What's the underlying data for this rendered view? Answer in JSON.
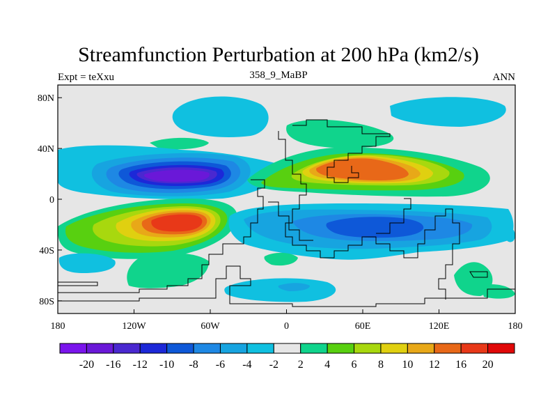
{
  "title": "Streamfunction Perturbation at 200 hPa (km2/s)",
  "left_label": "Expt = teXxu",
  "center_label": "358_9_MaBP",
  "right_label": "ANN",
  "map": {
    "lon_range": [
      -180,
      180
    ],
    "lat_range": [
      -90,
      90
    ],
    "x_ticks": [
      {
        "value": -180,
        "label": "180"
      },
      {
        "value": -120,
        "label": "120W"
      },
      {
        "value": -60,
        "label": "60W"
      },
      {
        "value": 0,
        "label": "0"
      },
      {
        "value": 60,
        "label": "60E"
      },
      {
        "value": 120,
        "label": "120E"
      },
      {
        "value": 180,
        "label": "180"
      }
    ],
    "y_ticks": [
      {
        "value": 80,
        "label": "80N"
      },
      {
        "value": 40,
        "label": "40N"
      },
      {
        "value": 0,
        "label": "0"
      },
      {
        "value": -40,
        "label": "40S"
      },
      {
        "value": -80,
        "label": "80S"
      }
    ],
    "background_color": "#e6e6e6"
  },
  "colorbar": {
    "levels": [
      "-20",
      "-16",
      "-12",
      "-10",
      "-8",
      "-6",
      "-4",
      "-2",
      "2",
      "4",
      "6",
      "8",
      "10",
      "12",
      "16",
      "20"
    ],
    "colors": [
      "#7a14ec",
      "#6a18d8",
      "#4a28d0",
      "#1c28d8",
      "#0e58d8",
      "#1e88e4",
      "#17a4e0",
      "#10c0e0",
      "#e6e6e6",
      "#10d48c",
      "#58d010",
      "#a8d80e",
      "#e0d010",
      "#e8a818",
      "#e86818",
      "#e83818",
      "#e00808"
    ]
  }
}
